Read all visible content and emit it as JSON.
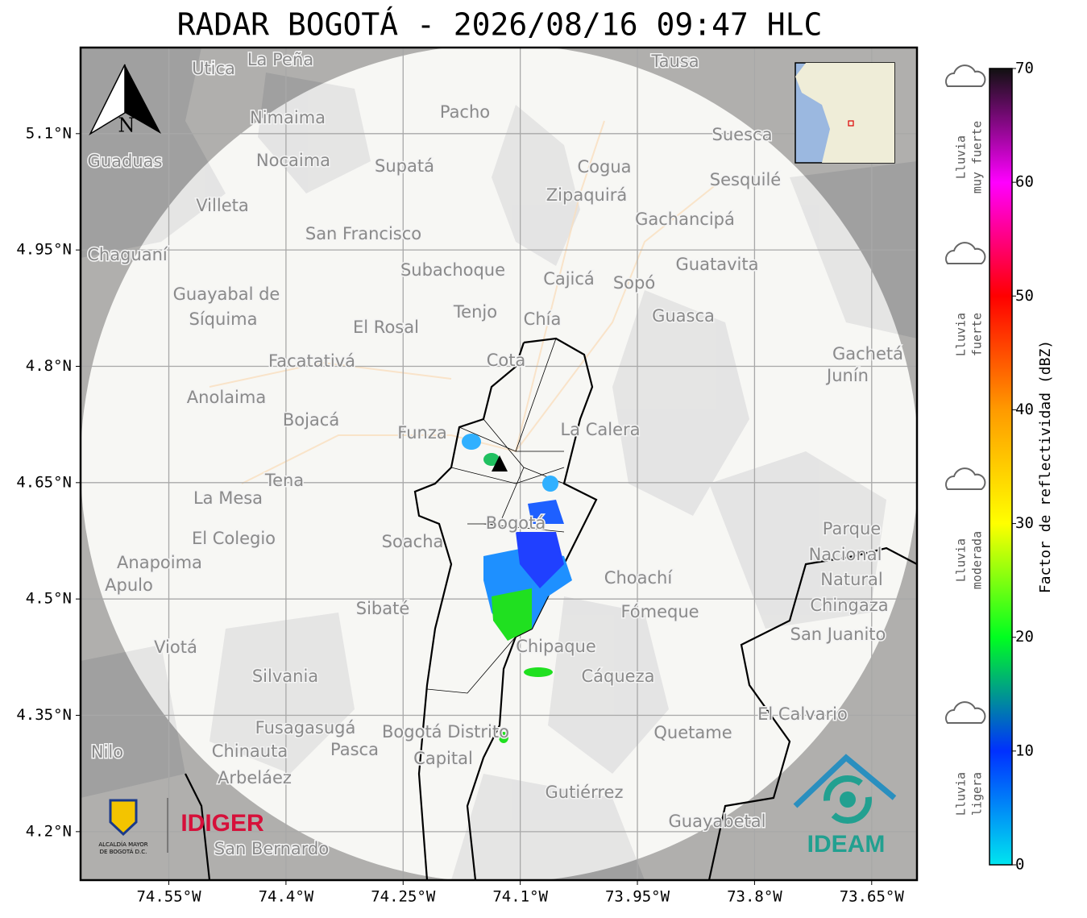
{
  "map": {
    "title": "RADAR BOGOTÁ - 2026/08/16 09:47 HLC",
    "xlim": [
      -74.663,
      -73.592
    ],
    "ylim": [
      4.1375,
      5.211
    ],
    "xticks": [
      {
        "value": -74.55,
        "label": "74.55°W"
      },
      {
        "value": -74.4,
        "label": "74.4°W"
      },
      {
        "value": -74.25,
        "label": "74.25°W"
      },
      {
        "value": -74.1,
        "label": "74.1°W"
      },
      {
        "value": -73.95,
        "label": "73.95°W"
      },
      {
        "value": -73.8,
        "label": "73.8°W"
      },
      {
        "value": -73.65,
        "label": "73.65°W"
      }
    ],
    "yticks": [
      {
        "value": 5.1,
        "label": "5.1°N"
      },
      {
        "value": 4.95,
        "label": "4.95°N"
      },
      {
        "value": 4.8,
        "label": "4.8°N"
      },
      {
        "value": 4.65,
        "label": "4.65°N"
      },
      {
        "value": 4.5,
        "label": "4.5°N"
      },
      {
        "value": 4.35,
        "label": "4.35°N"
      },
      {
        "value": 4.2,
        "label": "4.2°N"
      }
    ],
    "grid": true,
    "north": "N",
    "places": [
      "La Peña",
      "Utica",
      "Tausa",
      "Pacho",
      "Nimaima",
      "Guaduas",
      "Nocaima",
      "Supatá",
      "Cogua",
      "Suesca",
      "Sesquilé",
      "Zipaquirá",
      "Villeta",
      "San Francisco",
      "Gachancipá",
      "Chaguaní",
      "Guatavita",
      "Subachoque",
      "Cajicá",
      "Sopó",
      "Guayabal de",
      "Síquima",
      "Tenjo",
      "Chía",
      "Guasca",
      "El Rosal",
      "Gachetá",
      "Junín",
      "Facatativá",
      "Cota",
      "Anolaima",
      "Bojacá",
      "Funza",
      "La Calera",
      "Tena",
      "La Mesa",
      "Soacha",
      "Bogotá",
      "Parque",
      "Nacional",
      "Natural",
      "Chingaza",
      "El Colegio",
      "Anapoima",
      "Apulo",
      "Choachí",
      "Sibaté",
      "Fómeque",
      "San Juanito",
      "Viotá",
      "Chipaque",
      "Cáqueza",
      "Silvania",
      "El Calvario",
      "Fusagasugá",
      "Bogotá Distrito",
      "Capital",
      "Quetame",
      "Chinauta",
      "Pasca",
      "Nilo",
      "Arbeláez",
      "Gutiérrez",
      "Guayabetal",
      "San Bernardo"
    ],
    "logos": {
      "alcaldia": [
        "ALCALDÍA MAYOR",
        "DE BOGOTÁ D.C."
      ],
      "idiger": "IDIGER",
      "ideam": "IDEAM"
    },
    "colorbar": {
      "label": "Factor de reflectividad (dBZ)",
      "lim": [
        0,
        70
      ],
      "ticks": [
        0,
        10,
        20,
        30,
        40,
        50,
        60,
        70
      ],
      "colors": [
        "#00e5ef",
        "#0030ff",
        "#00ff20",
        "#ffff00",
        "#ff9a00",
        "#ff0000",
        "#ff00ff",
        "#111111"
      ]
    },
    "intensity": [
      [
        "Lluvia",
        "muy fuerte"
      ],
      [
        "Lluvia",
        "fuerte"
      ],
      [
        "Lluvia",
        "moderada"
      ],
      [
        "Lluvia",
        "ligera"
      ]
    ]
  }
}
